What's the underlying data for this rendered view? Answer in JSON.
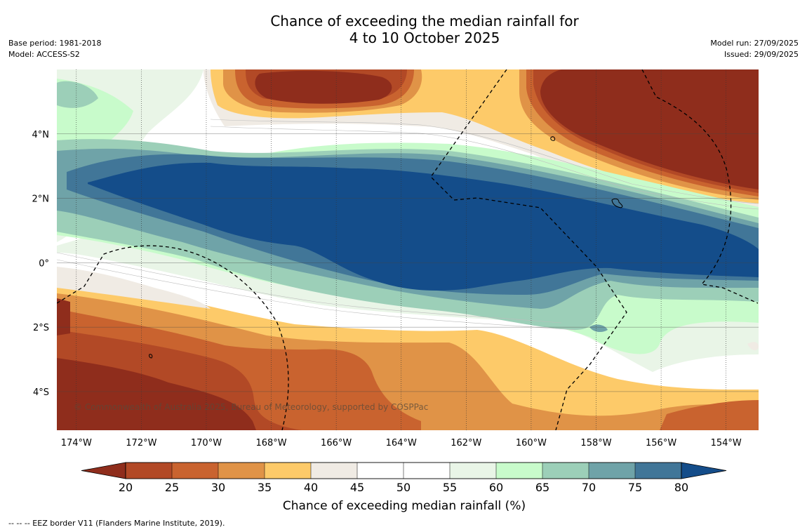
{
  "title": {
    "line1": "Chance of exceeding the median rainfall for",
    "line2": "4 to 10 October 2025"
  },
  "meta_left": {
    "base_period": "Base period: 1981-2018",
    "model": "Model: ACCESS-S2"
  },
  "meta_right": {
    "model_run": "Model run: 27/09/2025",
    "issued": "Issued: 29/09/2025"
  },
  "map": {
    "copyright": "© Commonwealth of Australia 2025, Bureau of Meteorology, supported by COSPPac",
    "lat_range": [
      -5.2,
      6.0
    ],
    "lon_range": [
      -174.6,
      -153.0
    ],
    "lat_labels": [
      {
        "value": 4,
        "text": "4°N"
      },
      {
        "value": 2,
        "text": "2°N"
      },
      {
        "value": 0,
        "text": "0°"
      },
      {
        "value": -2,
        "text": "2°S"
      },
      {
        "value": -4,
        "text": "4°S"
      }
    ],
    "lon_labels": [
      {
        "value": -174,
        "text": "174°W"
      },
      {
        "value": -172,
        "text": "172°W"
      },
      {
        "value": -170,
        "text": "170°W"
      },
      {
        "value": -168,
        "text": "168°W"
      },
      {
        "value": -166,
        "text": "166°W"
      },
      {
        "value": -164,
        "text": "164°W"
      },
      {
        "value": -162,
        "text": "162°W"
      },
      {
        "value": -160,
        "text": "160°W"
      },
      {
        "value": -158,
        "text": "158°W"
      },
      {
        "value": -156,
        "text": "156°W"
      },
      {
        "value": -154,
        "text": "154°W"
      }
    ]
  },
  "colorbar": {
    "title": "Chance of exceeding median rainfall (%)",
    "ticks": [
      "20",
      "25",
      "30",
      "35",
      "40",
      "45",
      "50",
      "55",
      "60",
      "65",
      "70",
      "75",
      "80"
    ],
    "colors": {
      "below20": "#8f2d1c",
      "c20_25": "#b24926",
      "c25_30": "#c9632f",
      "c30_35": "#e09347",
      "c35_40": "#fdca69",
      "c40_45": "#f0ebe4",
      "c45_50": "#ffffff",
      "c50_55": "#ffffff",
      "c55_60": "#e9f5e7",
      "c60_65": "#c8fbcb",
      "c65_70": "#9ccfb8",
      "c70_75": "#6fa3a8",
      "c75_80": "#417698",
      "above80": "#144d8a"
    }
  },
  "footer": "--  --  -- EEZ border V11 (Flanders Marine Institute, 2019)."
}
